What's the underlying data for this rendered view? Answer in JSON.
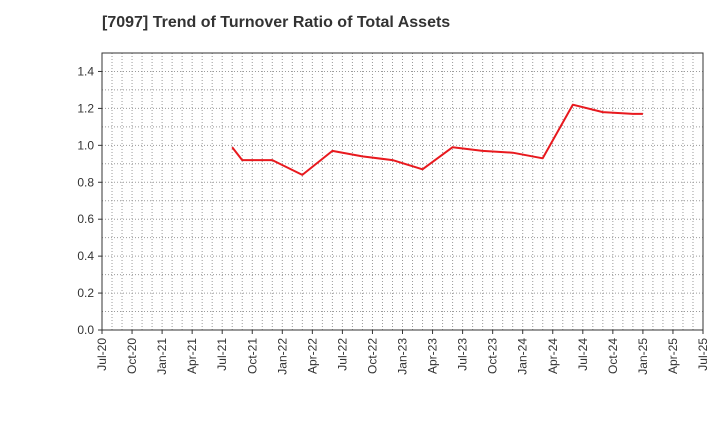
{
  "chart_data": {
    "type": "line",
    "title": "[7097]  Trend of Turnover Ratio of Total Assets",
    "xlabel": "",
    "ylabel": "",
    "ylim": [
      0,
      1.5
    ],
    "yticks": [
      "0.0",
      "0.2",
      "0.4",
      "0.6",
      "0.8",
      "1.0",
      "1.2",
      "1.4"
    ],
    "ytick_values": [
      0,
      0.2,
      0.4,
      0.6,
      0.8,
      1.0,
      1.2,
      1.4
    ],
    "xticks": [
      "Jul-20",
      "Oct-20",
      "Jan-21",
      "Apr-21",
      "Jul-21",
      "Oct-21",
      "Jan-22",
      "Apr-22",
      "Jul-22",
      "Oct-22",
      "Jan-23",
      "Apr-23",
      "Jul-23",
      "Oct-23",
      "Jan-24",
      "Apr-24",
      "Jul-24",
      "Oct-24",
      "Jan-25",
      "Apr-25",
      "Jul-25"
    ],
    "grid": true,
    "series": [
      {
        "color": "#e8191e",
        "x": [
          "Aug-21",
          "Sep-21",
          "Dec-21",
          "Mar-22",
          "Jun-22",
          "Sep-22",
          "Dec-22",
          "Mar-23",
          "Jun-23",
          "Sep-23",
          "Dec-23",
          "Mar-24",
          "Jun-24",
          "Sep-24",
          "Dec-24",
          "Jan-25"
        ],
        "values": [
          0.99,
          0.92,
          0.92,
          0.84,
          0.97,
          0.94,
          0.92,
          0.87,
          0.99,
          0.97,
          0.96,
          0.93,
          1.22,
          1.18,
          1.17,
          1.17
        ]
      }
    ]
  }
}
